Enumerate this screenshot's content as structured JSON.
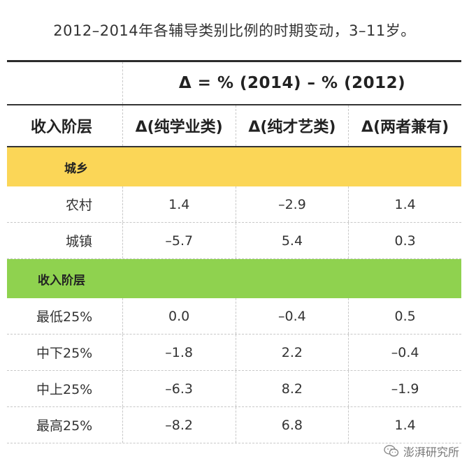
{
  "title": "2012–2014年各辅导类别比例的时期变动，3–11岁。",
  "delta_formula": "Δ =  % (2014) – % (2012)",
  "headers": [
    "收入阶层",
    "Δ(纯学业类)",
    "Δ(纯才艺类)",
    "Δ(两者兼有)"
  ],
  "groups": [
    {
      "name": "城乡",
      "color": "#fbd657",
      "rows": [
        {
          "label": "农村",
          "values": [
            "1.4",
            "–2.9",
            "1.4"
          ]
        },
        {
          "label": "城镇",
          "values": [
            "–5.7",
            "5.4",
            "0.3"
          ]
        }
      ]
    },
    {
      "name": "收入阶层",
      "color": "#8fd24f",
      "rows": [
        {
          "label": "最低25%",
          "values": [
            "0.0",
            "–0.4",
            "0.5"
          ]
        },
        {
          "label": "中下25%",
          "values": [
            "–1.8",
            "2.2",
            "–0.4"
          ]
        },
        {
          "label": "中上25%",
          "values": [
            "–6.3",
            "8.2",
            "–1.9"
          ]
        },
        {
          "label": "最高25%",
          "values": [
            "–8.2",
            "6.8",
            "1.4"
          ]
        }
      ]
    }
  ],
  "watermark": {
    "icon": "wechat-icon",
    "text": "澎湃研究所"
  }
}
